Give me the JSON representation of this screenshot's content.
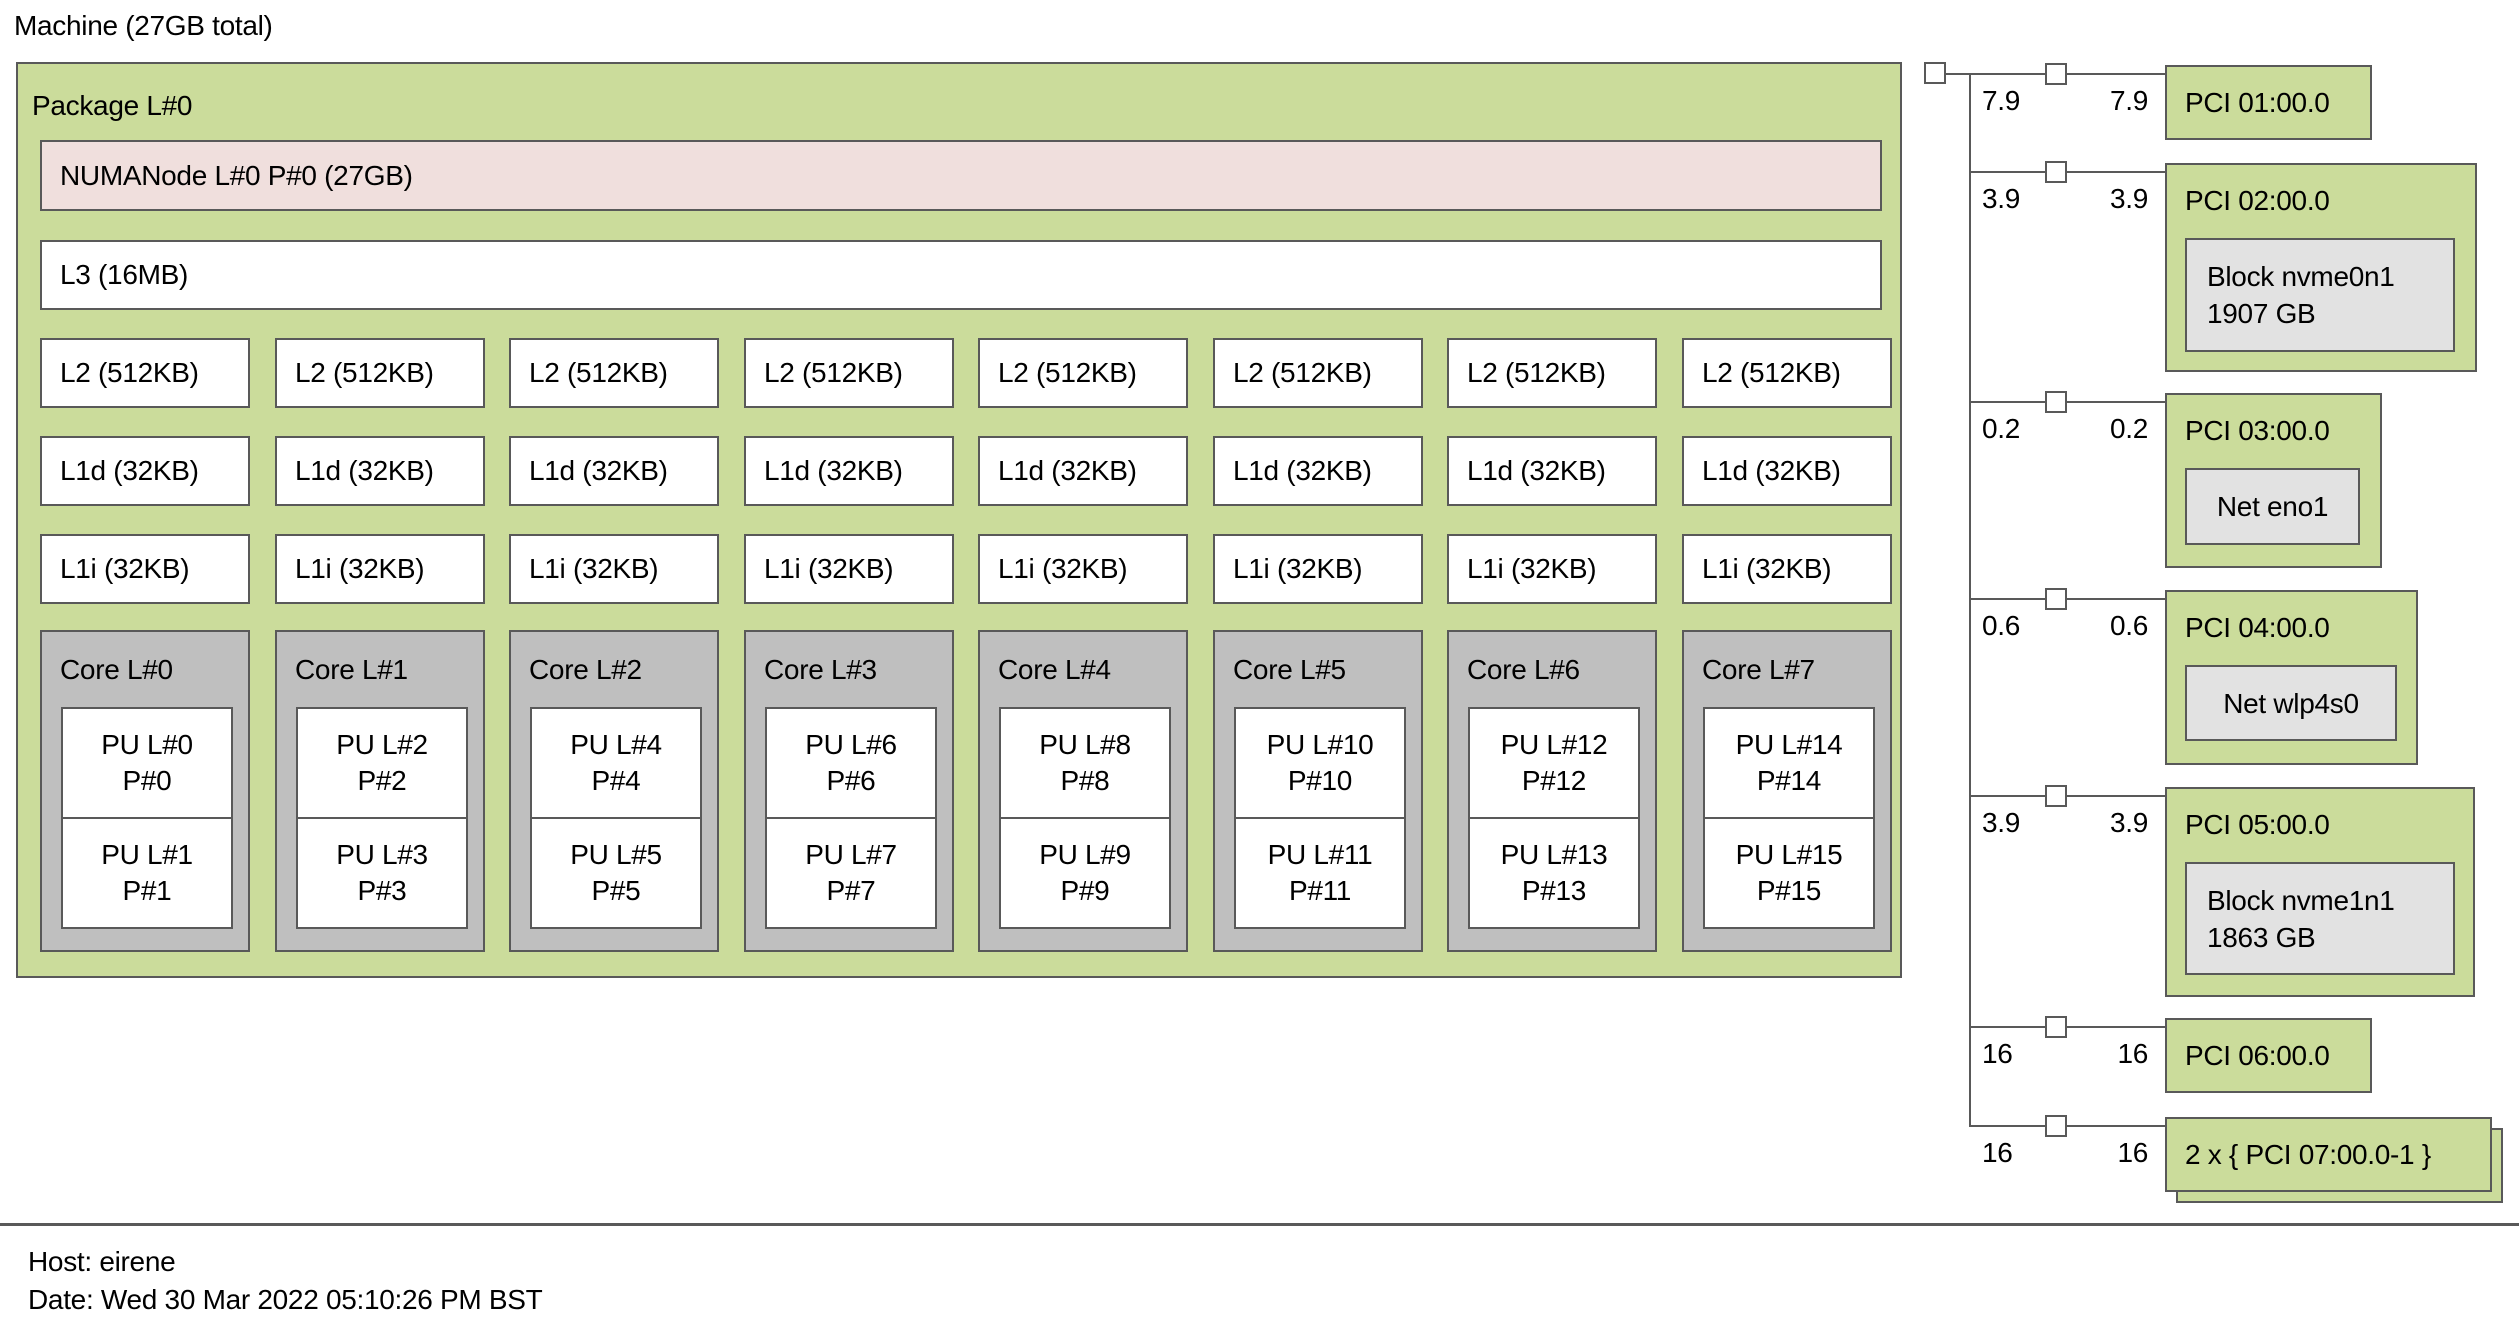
{
  "machine_label": "Machine (27GB total)",
  "package": {
    "label": "Package L#0",
    "numanode_label": "NUMANode L#0 P#0 (27GB)",
    "l3_label": "L3 (16MB)",
    "l2_labels": [
      "L2 (512KB)",
      "L2 (512KB)",
      "L2 (512KB)",
      "L2 (512KB)",
      "L2 (512KB)",
      "L2 (512KB)",
      "L2 (512KB)",
      "L2 (512KB)"
    ],
    "l1d_labels": [
      "L1d (32KB)",
      "L1d (32KB)",
      "L1d (32KB)",
      "L1d (32KB)",
      "L1d (32KB)",
      "L1d (32KB)",
      "L1d (32KB)",
      "L1d (32KB)"
    ],
    "l1i_labels": [
      "L1i (32KB)",
      "L1i (32KB)",
      "L1i (32KB)",
      "L1i (32KB)",
      "L1i (32KB)",
      "L1i (32KB)",
      "L1i (32KB)",
      "L1i (32KB)"
    ],
    "cores": [
      {
        "label": "Core L#0",
        "pus": [
          [
            "PU L#0",
            "P#0"
          ],
          [
            "PU L#1",
            "P#1"
          ]
        ]
      },
      {
        "label": "Core L#1",
        "pus": [
          [
            "PU L#2",
            "P#2"
          ],
          [
            "PU L#3",
            "P#3"
          ]
        ]
      },
      {
        "label": "Core L#2",
        "pus": [
          [
            "PU L#4",
            "P#4"
          ],
          [
            "PU L#5",
            "P#5"
          ]
        ]
      },
      {
        "label": "Core L#3",
        "pus": [
          [
            "PU L#6",
            "P#6"
          ],
          [
            "PU L#7",
            "P#7"
          ]
        ]
      },
      {
        "label": "Core L#4",
        "pus": [
          [
            "PU L#8",
            "P#8"
          ],
          [
            "PU L#9",
            "P#9"
          ]
        ]
      },
      {
        "label": "Core L#5",
        "pus": [
          [
            "PU L#10",
            "P#10"
          ],
          [
            "PU L#11",
            "P#11"
          ]
        ]
      },
      {
        "label": "Core L#6",
        "pus": [
          [
            "PU L#12",
            "P#12"
          ],
          [
            "PU L#13",
            "P#13"
          ]
        ]
      },
      {
        "label": "Core L#7",
        "pus": [
          [
            "PU L#14",
            "P#14"
          ],
          [
            "PU L#15",
            "P#15"
          ]
        ]
      }
    ]
  },
  "pci_tree": {
    "branches": [
      {
        "speed_left": "7.9",
        "speed_right": "7.9",
        "label": "PCI 01:00.0",
        "device": null,
        "stacked": false
      },
      {
        "speed_left": "3.9",
        "speed_right": "3.9",
        "label": "PCI 02:00.0",
        "device": [
          "Block nvme0n1",
          "1907 GB"
        ],
        "stacked": false
      },
      {
        "speed_left": "0.2",
        "speed_right": "0.2",
        "label": "PCI 03:00.0",
        "device": [
          "Net eno1"
        ],
        "stacked": false
      },
      {
        "speed_left": "0.6",
        "speed_right": "0.6",
        "label": "PCI 04:00.0",
        "device": [
          "Net wlp4s0"
        ],
        "stacked": false
      },
      {
        "speed_left": "3.9",
        "speed_right": "3.9",
        "label": "PCI 05:00.0",
        "device": [
          "Block nvme1n1",
          "1863 GB"
        ],
        "stacked": false
      },
      {
        "speed_left": "16",
        "speed_right": "16",
        "label": "PCI 06:00.0",
        "device": null,
        "stacked": false
      },
      {
        "speed_left": "16",
        "speed_right": "16",
        "label": "2 x { PCI 07:00.0-1 }",
        "device": null,
        "stacked": true
      }
    ]
  },
  "footer": {
    "host": "Host: eirene",
    "date": "Date: Wed 30 Mar 2022 05:10:26 PM BST"
  },
  "colors": {
    "package_green": "#cbdc9b",
    "numanode_pink": "#f0dfdd",
    "core_grey": "#bfbfbf",
    "device_grey": "#e2e2e2",
    "border_grey": "#595959",
    "pu_white": "#ffffff",
    "background": "#ffffff"
  }
}
